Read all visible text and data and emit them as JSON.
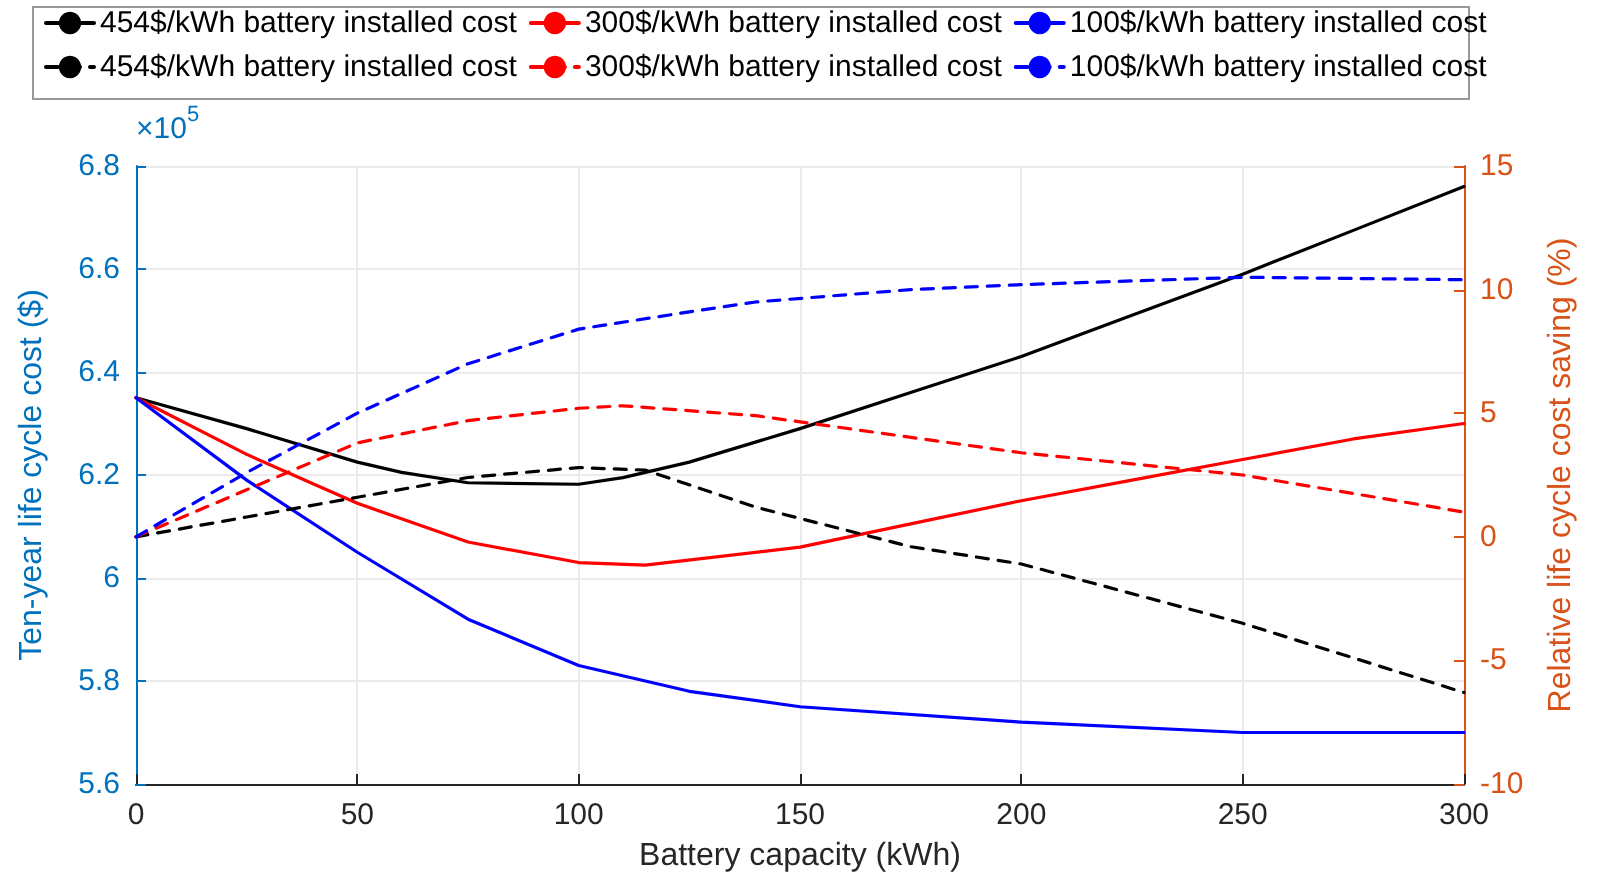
{
  "chart_data": {
    "type": "line",
    "xlabel": "Battery capacity (kWh)",
    "ylabel": "Ten-year life cycle cost ($)",
    "y2label": "Relative life cycle cost saving (%)",
    "annotations": [
      "×10$^{5}$"
    ],
    "xlim": [
      0,
      300
    ],
    "xticks": [
      0,
      50,
      100,
      150,
      200,
      250,
      300
    ],
    "ylim": [
      5.6,
      6.8
    ],
    "yticks": [
      5.6,
      5.8,
      6,
      6.2,
      6.4,
      6.6,
      6.8
    ],
    "y2lim": [
      -10,
      15
    ],
    "y2ticks": [
      -10,
      -5,
      0,
      5,
      10,
      15
    ],
    "grid": true,
    "legend": "top",
    "marker": "none",
    "series": [
      {
        "name": "454$/kWh battery installed cost",
        "color": "#000000",
        "line_style": "solid",
        "x": [
          0,
          25,
          50,
          60,
          75,
          100,
          110,
          125,
          150,
          175,
          200,
          225,
          250,
          275,
          300
        ],
        "values": [
          6.35,
          6.29,
          6.225,
          6.205,
          6.185,
          6.182,
          6.195,
          6.225,
          6.29,
          6.36,
          6.43,
          6.51,
          6.59,
          6.675,
          6.76
        ]
      },
      {
        "name": "300$/kWh battery installed cost",
        "color": "#ff0000",
        "line_style": "solid",
        "x": [
          0,
          25,
          50,
          75,
          100,
          115,
          150,
          175,
          200,
          225,
          250,
          275,
          300
        ],
        "values": [
          6.35,
          6.24,
          6.145,
          6.07,
          6.03,
          6.025,
          6.06,
          6.105,
          6.15,
          6.19,
          6.23,
          6.27,
          6.3
        ]
      },
      {
        "name": "100$/kWh battery installed cost",
        "color": "#0000ff",
        "line_style": "solid",
        "x": [
          0,
          25,
          50,
          75,
          100,
          125,
          150,
          200,
          250,
          300
        ],
        "values": [
          6.35,
          6.19,
          6.05,
          5.92,
          5.83,
          5.78,
          5.75,
          5.72,
          5.7,
          5.7
        ]
      },
      {
        "name": "454$/kWh battery installed cost",
        "color": "#000000",
        "line_style": "dashed",
        "axis": "y2",
        "x": [
          0,
          25,
          50,
          75,
          100,
          115,
          140,
          175,
          200,
          250,
          300
        ],
        "values": [
          0,
          0.8,
          1.6,
          2.4,
          2.8,
          2.7,
          1.2,
          -0.4,
          -1.1,
          -3.5,
          -6.3
        ]
      },
      {
        "name": "300$/kWh battery installed cost",
        "color": "#ff0000",
        "line_style": "dashed",
        "axis": "y2",
        "x": [
          0,
          25,
          50,
          75,
          100,
          110,
          140,
          200,
          250,
          300
        ],
        "values": [
          0,
          1.9,
          3.8,
          4.7,
          5.2,
          5.3,
          4.9,
          3.4,
          2.5,
          1.0
        ]
      },
      {
        "name": "100$/kWh battery installed cost",
        "color": "#0000ff",
        "line_style": "dashed",
        "axis": "y2",
        "x": [
          0,
          25,
          50,
          75,
          100,
          125,
          140,
          175,
          200,
          250,
          300
        ],
        "values": [
          0,
          2.6,
          5.0,
          7.0,
          8.4,
          9.1,
          9.5,
          10.0,
          10.2,
          10.5,
          10.4
        ]
      }
    ]
  }
}
